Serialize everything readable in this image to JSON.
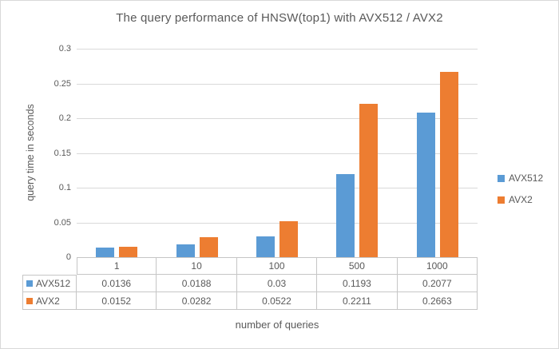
{
  "chart_data": {
    "type": "bar",
    "title": "The query performance of HNSW(top1) with AVX512 / AVX2",
    "xlabel": "number of queries",
    "ylabel": "query time in seconds",
    "categories": [
      "1",
      "10",
      "100",
      "500",
      "1000"
    ],
    "series": [
      {
        "name": "AVX512",
        "color": "#5B9BD5",
        "values": [
          0.0136,
          0.0188,
          0.03,
          0.1193,
          0.2077
        ]
      },
      {
        "name": "AVX2",
        "color": "#ED7D31",
        "values": [
          0.0152,
          0.0282,
          0.0522,
          0.2211,
          0.2663
        ]
      }
    ],
    "ylim": [
      0,
      0.3
    ],
    "yticks": [
      "0",
      "0.05",
      "0.1",
      "0.15",
      "0.2",
      "0.25",
      "0.3"
    ],
    "grid": true,
    "legend_position": "right-middle",
    "data_table_shown": true
  },
  "colors": {
    "text": "#595959",
    "gridline": "#D9D9D9",
    "table_border": "#C6C6C6",
    "background": "#FFFFFF",
    "outer_border": "#D9D9D9"
  }
}
